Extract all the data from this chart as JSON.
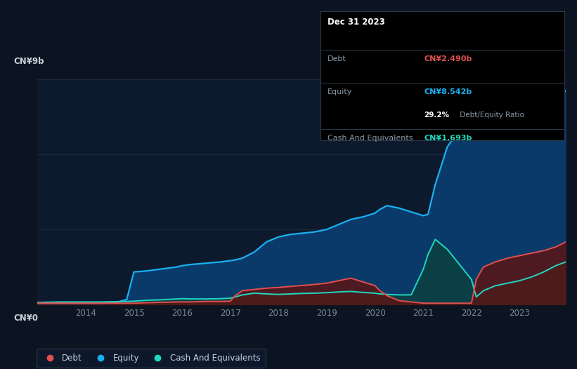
{
  "background_color": "#0d1421",
  "plot_bg_color": "#0d1a2e",
  "grid_color": "#1a2a40",
  "title_color": "#c8d0dc",
  "tick_color": "#7a8a9a",
  "equity_color": "#1ab0f0",
  "debt_color": "#e05050",
  "cash_color": "#20d8c0",
  "equity_fill": "#0a3a6a",
  "debt_fill": "#5a1515",
  "cash_fill": "#0a4040",
  "ylim": [
    0,
    9
  ],
  "ylabel_text": "CN¥9b",
  "ylabel0_text": "CN¥0",
  "tooltip_title": "Dec 31 2023",
  "tooltip_debt_label": "Debt",
  "tooltip_debt_value": "CN¥2.490b",
  "tooltip_equity_label": "Equity",
  "tooltip_equity_value": "CN¥8.542b",
  "tooltip_ratio_value": "29.2%",
  "tooltip_ratio_text": " Debt/Equity Ratio",
  "tooltip_cash_label": "Cash And Equivalents",
  "tooltip_cash_value": "CN¥1.693b",
  "legend_debt": "Debt",
  "legend_equity": "Equity",
  "legend_cash": "Cash And Equivalents",
  "year_ticks": [
    2014,
    2015,
    2016,
    2017,
    2018,
    2019,
    2020,
    2021,
    2022,
    2023
  ],
  "years": [
    2013.0,
    2013.2,
    2013.5,
    2013.8,
    2014.0,
    2014.3,
    2014.6,
    2014.85,
    2015.0,
    2015.15,
    2015.3,
    2015.5,
    2015.7,
    2015.9,
    2016.0,
    2016.2,
    2016.5,
    2016.8,
    2017.0,
    2017.1,
    2017.25,
    2017.5,
    2017.75,
    2018.0,
    2018.25,
    2018.5,
    2018.75,
    2019.0,
    2019.25,
    2019.5,
    2019.75,
    2020.0,
    2020.1,
    2020.25,
    2020.5,
    2020.75,
    2021.0,
    2021.1,
    2021.25,
    2021.5,
    2021.75,
    2022.0,
    2022.1,
    2022.25,
    2022.5,
    2022.75,
    2023.0,
    2023.25,
    2023.5,
    2023.75,
    2023.95
  ],
  "equity": [
    0.05,
    0.05,
    0.05,
    0.05,
    0.05,
    0.05,
    0.06,
    0.2,
    1.3,
    1.32,
    1.35,
    1.4,
    1.45,
    1.5,
    1.55,
    1.6,
    1.65,
    1.7,
    1.75,
    1.78,
    1.85,
    2.1,
    2.5,
    2.7,
    2.8,
    2.85,
    2.9,
    3.0,
    3.2,
    3.4,
    3.5,
    3.65,
    3.8,
    3.95,
    3.85,
    3.7,
    3.55,
    3.6,
    4.8,
    6.3,
    7.0,
    7.4,
    6.7,
    6.8,
    6.9,
    7.0,
    7.1,
    7.3,
    7.6,
    8.1,
    8.542
  ],
  "debt": [
    0.05,
    0.05,
    0.05,
    0.05,
    0.05,
    0.05,
    0.05,
    0.05,
    0.05,
    0.06,
    0.07,
    0.08,
    0.09,
    0.1,
    0.1,
    0.1,
    0.12,
    0.12,
    0.13,
    0.35,
    0.55,
    0.6,
    0.65,
    0.68,
    0.72,
    0.76,
    0.8,
    0.85,
    0.95,
    1.05,
    0.9,
    0.75,
    0.55,
    0.35,
    0.15,
    0.1,
    0.05,
    0.05,
    0.05,
    0.05,
    0.05,
    0.05,
    1.0,
    1.5,
    1.7,
    1.85,
    1.95,
    2.05,
    2.15,
    2.3,
    2.49
  ],
  "cash": [
    0.08,
    0.09,
    0.1,
    0.1,
    0.1,
    0.1,
    0.11,
    0.12,
    0.13,
    0.15,
    0.17,
    0.18,
    0.2,
    0.22,
    0.23,
    0.22,
    0.22,
    0.23,
    0.25,
    0.3,
    0.38,
    0.45,
    0.42,
    0.4,
    0.42,
    0.44,
    0.45,
    0.47,
    0.5,
    0.52,
    0.48,
    0.45,
    0.42,
    0.4,
    0.38,
    0.38,
    1.4,
    2.0,
    2.6,
    2.2,
    1.6,
    1.0,
    0.3,
    0.55,
    0.75,
    0.85,
    0.95,
    1.1,
    1.3,
    1.55,
    1.693
  ]
}
